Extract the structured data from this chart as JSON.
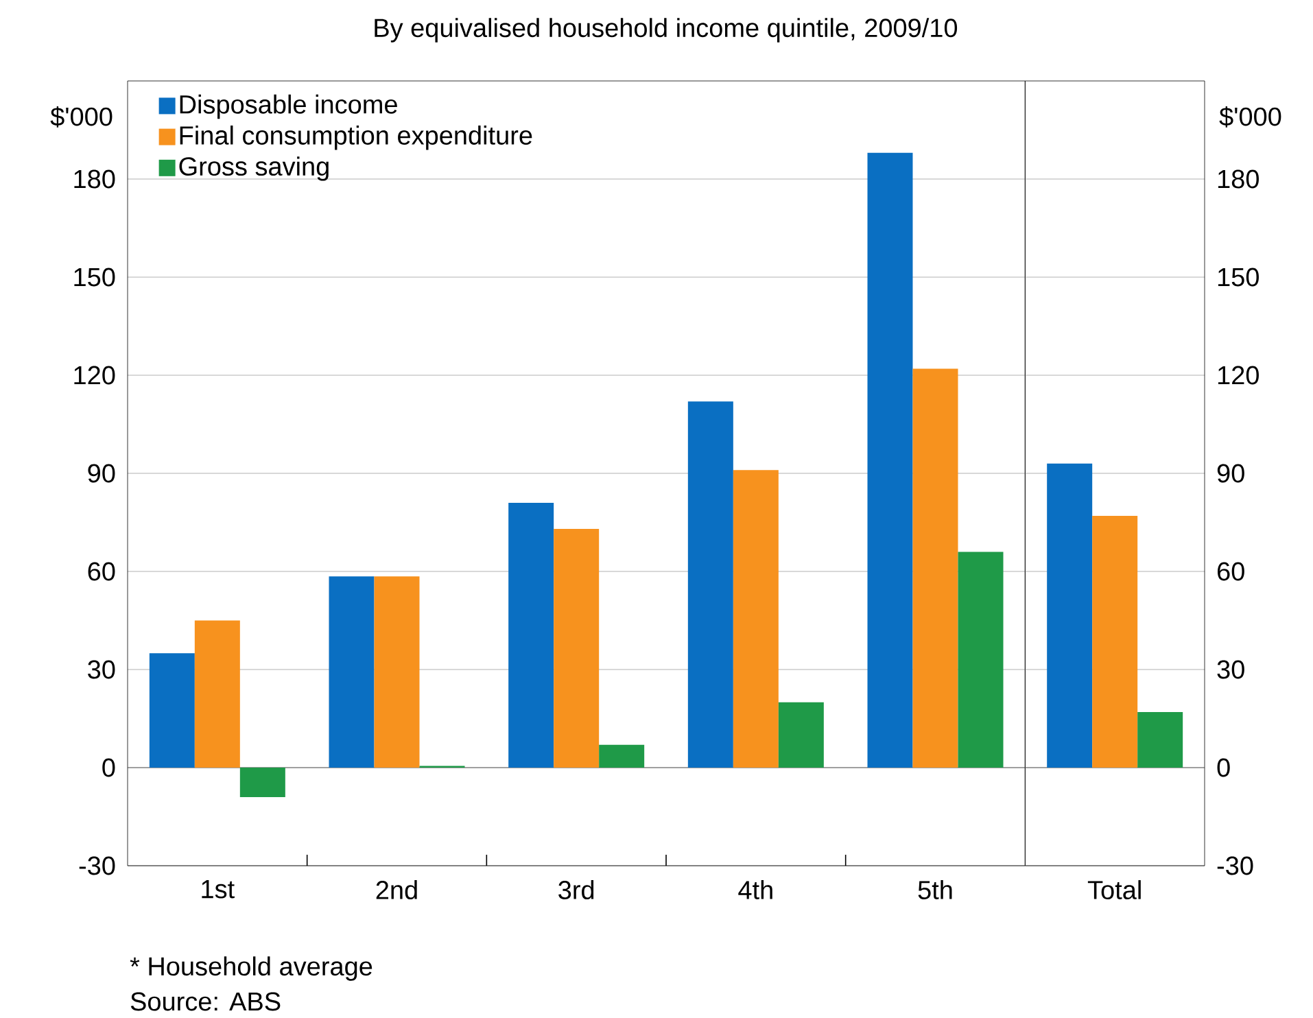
{
  "chart_data": [
    {
      "type": "bar",
      "subtitle": "By equivalised household income quintile, 2009/10",
      "ylabel": "$'000",
      "categories": [
        "1st",
        "2nd",
        "3rd",
        "4th",
        "5th"
      ],
      "series": [
        {
          "name": "Disposable income",
          "color": "#0a6fc2",
          "values": [
            35,
            58.5,
            81,
            112,
            188
          ]
        },
        {
          "name": "Final consumption expenditure",
          "color": "#f7921e",
          "values": [
            45,
            58.5,
            73,
            91,
            122
          ]
        },
        {
          "name": "Gross saving",
          "color": "#1f9a48",
          "values": [
            -9,
            0.5,
            7,
            20,
            66
          ]
        }
      ],
      "ylim": [
        -30,
        210
      ],
      "yticks": [
        -30,
        0,
        30,
        60,
        90,
        120,
        150,
        180
      ],
      "grid": "y",
      "legend": "top left",
      "annotations": [
        "* Household average",
        "Source: ABS"
      ]
    },
    {
      "type": "bar",
      "ylabel": "$'000",
      "categories": [
        "Total"
      ],
      "series": [
        {
          "color": "#0a6fc2",
          "values": [
            93
          ]
        },
        {
          "color": "#f7921e",
          "values": [
            77
          ]
        },
        {
          "color": "#1f9a48",
          "values": [
            17
          ]
        }
      ],
      "ylim": [
        -30,
        210
      ],
      "yticks": [
        -30,
        0,
        30,
        60,
        90,
        120,
        150,
        180
      ],
      "grid": "y"
    }
  ]
}
